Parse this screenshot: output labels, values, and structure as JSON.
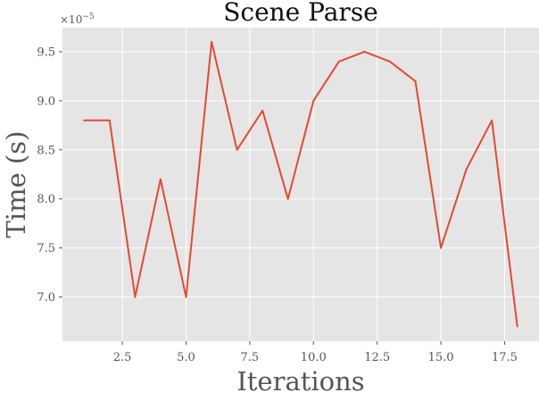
{
  "chart_data": {
    "type": "line",
    "title": "Scene Parse",
    "xlabel": "Iterations",
    "ylabel": "Time (s)",
    "y_offset_label": "×10",
    "y_offset_exponent": "−5",
    "y_scale": 1e-05,
    "x": [
      1,
      2,
      3,
      4,
      5,
      6,
      7,
      8,
      9,
      10,
      11,
      12,
      13,
      14,
      15,
      16,
      17,
      18
    ],
    "series": [
      {
        "values": [
          8.8,
          8.8,
          7.0,
          8.2,
          7.0,
          9.6,
          8.5,
          8.9,
          8.0,
          9.0,
          9.4,
          9.5,
          9.4,
          9.2,
          7.5,
          8.3,
          8.8,
          6.7
        ]
      }
    ],
    "xlim": [
      0.15,
      18.85
    ],
    "ylim": [
      6.55,
      9.745
    ],
    "x_ticks": [
      2.5,
      5.0,
      7.5,
      10.0,
      12.5,
      15.0,
      17.5
    ],
    "x_tick_labels": [
      "2.5",
      "5.0",
      "7.5",
      "10.0",
      "12.5",
      "15.0",
      "17.5"
    ],
    "y_ticks": [
      7.0,
      7.5,
      8.0,
      8.5,
      9.0,
      9.5
    ],
    "y_tick_labels": [
      "7.0",
      "7.5",
      "8.0",
      "8.5",
      "9.0",
      "9.5"
    ],
    "grid": true,
    "style": "ggplot",
    "colors": {
      "line": "#E24A33",
      "plot_background": "#E5E5E5",
      "grid": "#FFFFFF",
      "text": "#555555"
    }
  }
}
